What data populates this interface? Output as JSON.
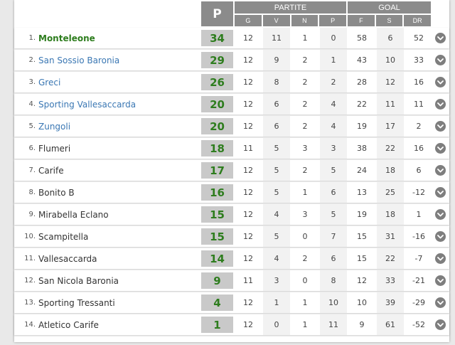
{
  "header": {
    "points_label": "P",
    "partite": {
      "title": "PARTITE",
      "cols": [
        "G",
        "V",
        "N",
        "P"
      ]
    },
    "goal": {
      "title": "GOAL",
      "cols": [
        "F",
        "S",
        "DR"
      ]
    }
  },
  "rows": [
    {
      "pos": "1.",
      "team": "Monteleone",
      "pts": "34",
      "g": "12",
      "v": "11",
      "n": "1",
      "p": "0",
      "f": "58",
      "s": "6",
      "dr": "52"
    },
    {
      "pos": "2.",
      "team": "San Sossio Baronia",
      "pts": "29",
      "g": "12",
      "v": "9",
      "n": "2",
      "p": "1",
      "f": "43",
      "s": "10",
      "dr": "33"
    },
    {
      "pos": "3.",
      "team": "Greci",
      "pts": "26",
      "g": "12",
      "v": "8",
      "n": "2",
      "p": "2",
      "f": "28",
      "s": "12",
      "dr": "16"
    },
    {
      "pos": "4.",
      "team": "Sporting Vallesaccarda",
      "pts": "20",
      "g": "12",
      "v": "6",
      "n": "2",
      "p": "4",
      "f": "22",
      "s": "11",
      "dr": "11"
    },
    {
      "pos": "5.",
      "team": "Zungoli",
      "pts": "20",
      "g": "12",
      "v": "6",
      "n": "2",
      "p": "4",
      "f": "19",
      "s": "17",
      "dr": "2"
    },
    {
      "pos": "6.",
      "team": "Flumeri",
      "pts": "18",
      "g": "11",
      "v": "5",
      "n": "3",
      "p": "3",
      "f": "38",
      "s": "22",
      "dr": "16"
    },
    {
      "pos": "7.",
      "team": "Carife",
      "pts": "17",
      "g": "12",
      "v": "5",
      "n": "2",
      "p": "5",
      "f": "24",
      "s": "18",
      "dr": "6"
    },
    {
      "pos": "8.",
      "team": "Bonito B",
      "pts": "16",
      "g": "12",
      "v": "5",
      "n": "1",
      "p": "6",
      "f": "13",
      "s": "25",
      "dr": "-12"
    },
    {
      "pos": "9.",
      "team": "Mirabella Eclano",
      "pts": "15",
      "g": "12",
      "v": "4",
      "n": "3",
      "p": "5",
      "f": "19",
      "s": "18",
      "dr": "1"
    },
    {
      "pos": "10.",
      "team": "Scampitella",
      "pts": "15",
      "g": "12",
      "v": "5",
      "n": "0",
      "p": "7",
      "f": "15",
      "s": "31",
      "dr": "-16"
    },
    {
      "pos": "11.",
      "team": "Vallesaccarda",
      "pts": "14",
      "g": "12",
      "v": "4",
      "n": "2",
      "p": "6",
      "f": "15",
      "s": "22",
      "dr": "-7"
    },
    {
      "pos": "12.",
      "team": "San Nicola Baronia",
      "pts": "9",
      "g": "11",
      "v": "3",
      "n": "0",
      "p": "8",
      "f": "12",
      "s": "33",
      "dr": "-21"
    },
    {
      "pos": "13.",
      "team": "Sporting Tressanti",
      "pts": "4",
      "g": "12",
      "v": "1",
      "n": "1",
      "p": "10",
      "f": "10",
      "s": "39",
      "dr": "-29"
    },
    {
      "pos": "14.",
      "team": "Atletico Carife",
      "pts": "1",
      "g": "12",
      "v": "0",
      "n": "1",
      "p": "11",
      "f": "9",
      "s": "61",
      "dr": "-52"
    }
  ],
  "icons": {
    "row_expand": "chevron-down-icon"
  },
  "colors": {
    "leader": "#2e7d1e",
    "qualified": "#3a77b3",
    "header": "#8b8b8b",
    "points_bg": "#c9c9c9"
  }
}
